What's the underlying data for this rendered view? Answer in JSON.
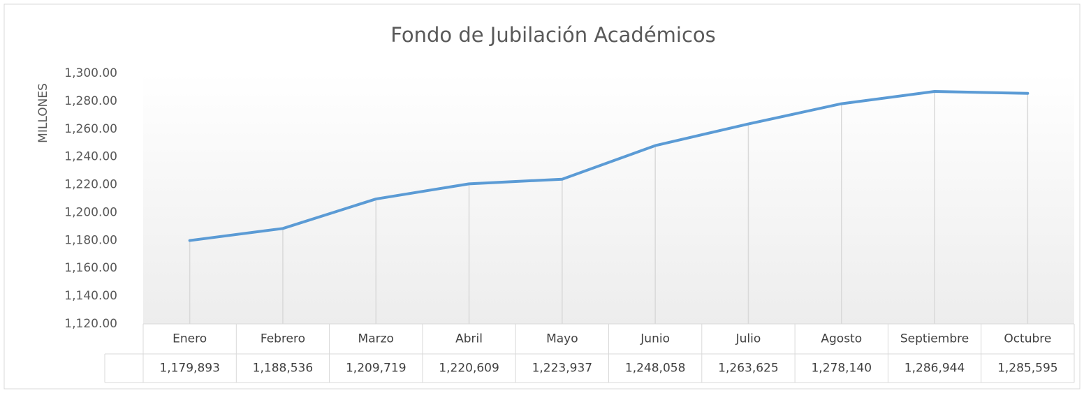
{
  "chart_data": {
    "type": "line",
    "title": "Fondo de Jubilación Académicos",
    "y_label": "MILLONES",
    "categories": [
      "Enero",
      "Febrero",
      "Marzo",
      "Abril",
      "Mayo",
      "Junio",
      "Julio",
      "Agosto",
      "Septiembre",
      "Octubre"
    ],
    "values": [
      1179.893,
      1188.536,
      1209.719,
      1220.609,
      1223.937,
      1248.058,
      1263.625,
      1278.14,
      1286.944,
      1285.595
    ],
    "value_labels": [
      "1,179,893",
      "1,188,536",
      "1,209,719",
      "1,220,609",
      "1,223,937",
      "1,248,058",
      "1,263,625",
      "1,278,140",
      "1,286,944",
      "1,285,595"
    ],
    "color": "#5b9bd5",
    "ylim": [
      1120,
      1300
    ],
    "yticks": [
      {
        "value": 1120,
        "label": "1,120.00"
      },
      {
        "value": 1140,
        "label": "1,140.00"
      },
      {
        "value": 1160,
        "label": "1,160.00"
      },
      {
        "value": 1180,
        "label": "1,180.00"
      },
      {
        "value": 1200,
        "label": "1,200.00"
      },
      {
        "value": 1220,
        "label": "1,220.00"
      },
      {
        "value": 1240,
        "label": "1,240.00"
      },
      {
        "value": 1260,
        "label": "1,260.00"
      },
      {
        "value": 1280,
        "label": "1,280.00"
      },
      {
        "value": 1300,
        "label": "1,300.00"
      }
    ]
  }
}
